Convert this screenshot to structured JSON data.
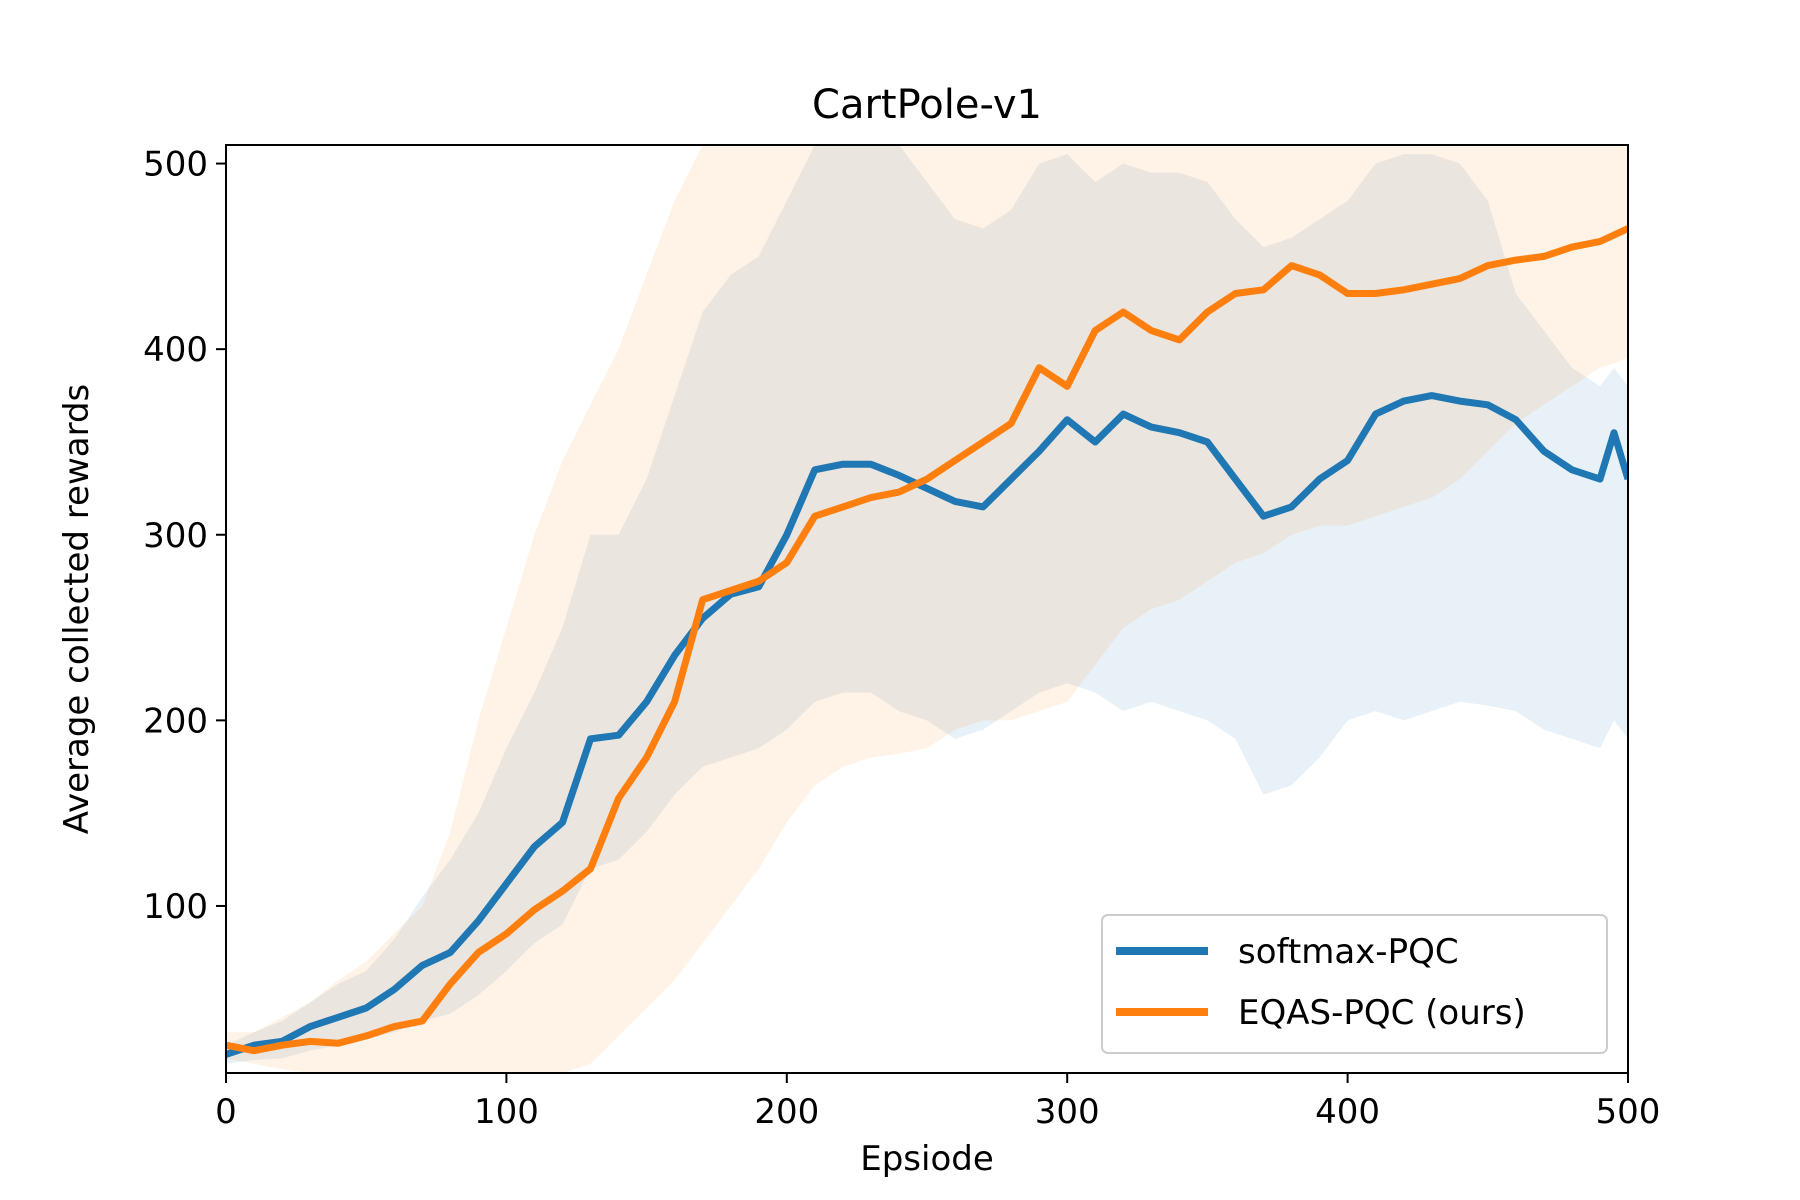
{
  "chart_data": {
    "type": "line",
    "title": "CartPole-v1",
    "xlabel": "Epsiode",
    "ylabel": "Average collected rewards",
    "xlim": [
      0,
      500
    ],
    "ylim": [
      10,
      510
    ],
    "xticks": [
      0,
      100,
      200,
      300,
      400,
      500
    ],
    "yticks": [
      100,
      200,
      300,
      400,
      500
    ],
    "legend_position": "bottom-right",
    "series": [
      {
        "name": "softmax-PQC",
        "color": "#1f77b4",
        "band_color": "#1f77b4",
        "x": [
          0,
          10,
          20,
          30,
          40,
          50,
          60,
          70,
          80,
          90,
          100,
          110,
          120,
          130,
          140,
          150,
          160,
          170,
          180,
          190,
          200,
          210,
          220,
          230,
          240,
          250,
          260,
          270,
          280,
          290,
          300,
          310,
          320,
          330,
          340,
          350,
          360,
          370,
          380,
          390,
          400,
          410,
          420,
          430,
          440,
          450,
          460,
          470,
          480,
          490,
          495,
          500
        ],
        "y": [
          20,
          25,
          27,
          35,
          40,
          45,
          55,
          68,
          75,
          92,
          112,
          132,
          145,
          190,
          192,
          210,
          235,
          255,
          268,
          272,
          300,
          335,
          338,
          338,
          332,
          325,
          318,
          315,
          330,
          345,
          362,
          350,
          365,
          358,
          355,
          350,
          330,
          310,
          315,
          330,
          340,
          365,
          372,
          375,
          372,
          370,
          362,
          345,
          335,
          330,
          355,
          330
        ],
        "lower": [
          15,
          17,
          18,
          22,
          25,
          28,
          32,
          38,
          42,
          52,
          65,
          80,
          90,
          120,
          125,
          140,
          160,
          175,
          180,
          185,
          195,
          210,
          215,
          215,
          205,
          200,
          190,
          195,
          205,
          215,
          220,
          215,
          205,
          210,
          205,
          200,
          190,
          160,
          165,
          180,
          200,
          205,
          200,
          205,
          210,
          208,
          205,
          195,
          190,
          185,
          200,
          190
        ],
        "upper": [
          25,
          32,
          38,
          48,
          58,
          65,
          82,
          105,
          125,
          150,
          185,
          215,
          250,
          300,
          300,
          330,
          375,
          420,
          440,
          450,
          480,
          510,
          510,
          510,
          510,
          490,
          470,
          465,
          475,
          500,
          505,
          490,
          500,
          495,
          495,
          490,
          470,
          455,
          460,
          470,
          480,
          500,
          505,
          505,
          500,
          480,
          430,
          410,
          390,
          380,
          390,
          380
        ]
      },
      {
        "name": "EQAS-PQC (ours)",
        "color": "#ff7f0e",
        "band_color": "#ff7f0e",
        "x": [
          0,
          10,
          20,
          30,
          40,
          50,
          60,
          70,
          80,
          90,
          100,
          110,
          120,
          130,
          140,
          150,
          160,
          170,
          180,
          190,
          200,
          210,
          220,
          230,
          240,
          250,
          260,
          270,
          280,
          290,
          300,
          310,
          320,
          330,
          340,
          350,
          360,
          370,
          380,
          390,
          400,
          410,
          420,
          430,
          440,
          450,
          460,
          470,
          480,
          490,
          500
        ],
        "y": [
          25,
          22,
          25,
          27,
          26,
          30,
          35,
          38,
          58,
          75,
          85,
          98,
          108,
          120,
          158,
          180,
          210,
          265,
          270,
          275,
          285,
          310,
          315,
          320,
          323,
          330,
          340,
          350,
          360,
          390,
          380,
          410,
          420,
          410,
          405,
          420,
          430,
          432,
          445,
          440,
          430,
          430,
          432,
          435,
          438,
          445,
          448,
          450,
          455,
          458,
          465
        ],
        "lower": [
          18,
          15,
          12,
          10,
          8,
          6,
          6,
          6,
          6,
          6,
          6,
          8,
          10,
          15,
          30,
          45,
          60,
          80,
          100,
          120,
          145,
          165,
          175,
          180,
          182,
          185,
          195,
          200,
          200,
          205,
          210,
          230,
          250,
          260,
          265,
          275,
          285,
          290,
          300,
          305,
          305,
          310,
          315,
          320,
          330,
          345,
          360,
          370,
          380,
          390,
          395
        ],
        "upper": [
          32,
          32,
          40,
          48,
          60,
          70,
          85,
          100,
          140,
          200,
          250,
          300,
          340,
          370,
          400,
          440,
          480,
          510,
          510,
          510,
          510,
          510,
          510,
          510,
          510,
          510,
          510,
          510,
          510,
          510,
          510,
          510,
          510,
          510,
          510,
          510,
          510,
          510,
          510,
          510,
          510,
          510,
          510,
          510,
          510,
          510,
          510,
          510,
          510,
          510,
          510
        ]
      }
    ]
  }
}
